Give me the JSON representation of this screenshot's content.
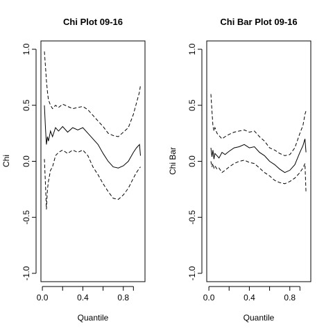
{
  "chart_data": [
    {
      "type": "line",
      "title": "Chi Plot 09-16",
      "xlabel": "Quantile",
      "ylabel": "Chi",
      "xlim": [
        0.0,
        1.0
      ],
      "ylim": [
        -1.0,
        1.0
      ],
      "xticks": [
        "0.0",
        "0.4",
        "0.8"
      ],
      "xtick_values": [
        0.0,
        0.4,
        0.8
      ],
      "xminor_ticks": [
        0.2,
        0.6,
        0.9
      ],
      "yticks": [
        "-1.0",
        "-0.5",
        "0.0",
        "0.5",
        "1.0"
      ],
      "ytick_values": [
        -1.0,
        -0.5,
        0.0,
        0.5,
        1.0
      ],
      "grid": false,
      "series": [
        {
          "style": "dashed",
          "x": [
            0.02,
            0.03,
            0.04,
            0.05,
            0.06,
            0.08,
            0.1,
            0.13,
            0.16,
            0.2,
            0.25,
            0.3,
            0.35,
            0.4,
            0.45,
            0.5,
            0.55,
            0.6,
            0.65,
            0.7,
            0.75,
            0.8,
            0.85,
            0.9,
            0.93,
            0.96,
            0.97
          ],
          "y": [
            0.98,
            0.85,
            0.72,
            0.62,
            0.55,
            0.5,
            0.47,
            0.5,
            0.48,
            0.51,
            0.49,
            0.47,
            0.48,
            0.49,
            0.46,
            0.41,
            0.36,
            0.31,
            0.25,
            0.23,
            0.22,
            0.26,
            0.3,
            0.42,
            0.52,
            0.62,
            0.68
          ]
        },
        {
          "style": "solid",
          "x": [
            0.02,
            0.03,
            0.04,
            0.05,
            0.06,
            0.08,
            0.1,
            0.13,
            0.16,
            0.2,
            0.25,
            0.3,
            0.35,
            0.4,
            0.45,
            0.5,
            0.55,
            0.6,
            0.65,
            0.7,
            0.75,
            0.8,
            0.85,
            0.9,
            0.93,
            0.96,
            0.97
          ],
          "y": [
            0.5,
            0.3,
            0.15,
            0.22,
            0.18,
            0.27,
            0.22,
            0.3,
            0.27,
            0.31,
            0.26,
            0.3,
            0.28,
            0.3,
            0.25,
            0.2,
            0.15,
            0.07,
            0.0,
            -0.05,
            -0.06,
            -0.04,
            0.0,
            0.08,
            0.12,
            0.15,
            0.05
          ]
        },
        {
          "style": "dashed",
          "x": [
            0.02,
            0.03,
            0.04,
            0.05,
            0.06,
            0.08,
            0.1,
            0.13,
            0.16,
            0.2,
            0.25,
            0.3,
            0.35,
            0.4,
            0.45,
            0.5,
            0.55,
            0.6,
            0.65,
            0.7,
            0.75,
            0.8,
            0.85,
            0.9,
            0.93,
            0.96,
            0.97
          ],
          "y": [
            0.02,
            -0.2,
            -0.43,
            -0.25,
            -0.18,
            -0.08,
            -0.05,
            0.05,
            0.08,
            0.1,
            0.07,
            0.1,
            0.08,
            0.1,
            0.05,
            -0.05,
            -0.12,
            -0.2,
            -0.27,
            -0.33,
            -0.34,
            -0.3,
            -0.24,
            -0.15,
            -0.1,
            -0.06,
            -0.05
          ]
        }
      ]
    },
    {
      "type": "line",
      "title": "Chi Bar Plot 09-16",
      "xlabel": "Quantile",
      "ylabel": "Chi Bar",
      "xlim": [
        0.0,
        1.0
      ],
      "ylim": [
        -1.0,
        1.0
      ],
      "xticks": [
        "0.0",
        "0.4",
        "0.8"
      ],
      "xtick_values": [
        0.0,
        0.4,
        0.8
      ],
      "xminor_ticks": [
        0.2,
        0.6,
        0.9
      ],
      "yticks": [
        "-1.0",
        "-0.5",
        "0.0",
        "0.5",
        "1.0"
      ],
      "ytick_values": [
        -1.0,
        -0.5,
        0.0,
        0.5,
        1.0
      ],
      "grid": false,
      "series": [
        {
          "style": "dashed",
          "x": [
            0.02,
            0.03,
            0.04,
            0.05,
            0.06,
            0.08,
            0.1,
            0.13,
            0.16,
            0.2,
            0.25,
            0.3,
            0.35,
            0.4,
            0.45,
            0.5,
            0.55,
            0.6,
            0.65,
            0.7,
            0.75,
            0.8,
            0.85,
            0.9,
            0.93,
            0.95,
            0.96
          ],
          "y": [
            0.6,
            0.45,
            0.32,
            0.27,
            0.3,
            0.25,
            0.23,
            0.2,
            0.22,
            0.24,
            0.26,
            0.27,
            0.28,
            0.26,
            0.27,
            0.22,
            0.18,
            0.12,
            0.1,
            0.07,
            0.05,
            0.06,
            0.12,
            0.25,
            0.32,
            0.42,
            0.45
          ]
        },
        {
          "style": "solid",
          "x": [
            0.02,
            0.03,
            0.04,
            0.05,
            0.06,
            0.08,
            0.1,
            0.13,
            0.16,
            0.2,
            0.25,
            0.3,
            0.35,
            0.4,
            0.45,
            0.5,
            0.55,
            0.6,
            0.65,
            0.7,
            0.75,
            0.8,
            0.85,
            0.9,
            0.93,
            0.95,
            0.96
          ],
          "y": [
            0.12,
            0.04,
            0.1,
            0.02,
            0.07,
            0.05,
            0.03,
            0.08,
            0.06,
            0.09,
            0.12,
            0.13,
            0.15,
            0.12,
            0.13,
            0.08,
            0.05,
            0.0,
            -0.03,
            -0.07,
            -0.1,
            -0.08,
            -0.03,
            0.08,
            0.14,
            0.2,
            0.08
          ]
        },
        {
          "style": "dashed",
          "x": [
            0.02,
            0.03,
            0.04,
            0.05,
            0.06,
            0.08,
            0.1,
            0.13,
            0.16,
            0.2,
            0.25,
            0.3,
            0.35,
            0.4,
            0.45,
            0.5,
            0.55,
            0.6,
            0.65,
            0.7,
            0.75,
            0.8,
            0.85,
            0.9,
            0.93,
            0.95,
            0.96
          ],
          "y": [
            0.0,
            -0.05,
            -0.02,
            -0.06,
            -0.04,
            -0.07,
            -0.06,
            -0.1,
            -0.08,
            -0.05,
            -0.02,
            0.0,
            0.01,
            -0.01,
            -0.02,
            -0.06,
            -0.1,
            -0.13,
            -0.17,
            -0.19,
            -0.2,
            -0.18,
            -0.15,
            -0.1,
            -0.06,
            -0.02,
            -0.28
          ]
        }
      ]
    }
  ]
}
